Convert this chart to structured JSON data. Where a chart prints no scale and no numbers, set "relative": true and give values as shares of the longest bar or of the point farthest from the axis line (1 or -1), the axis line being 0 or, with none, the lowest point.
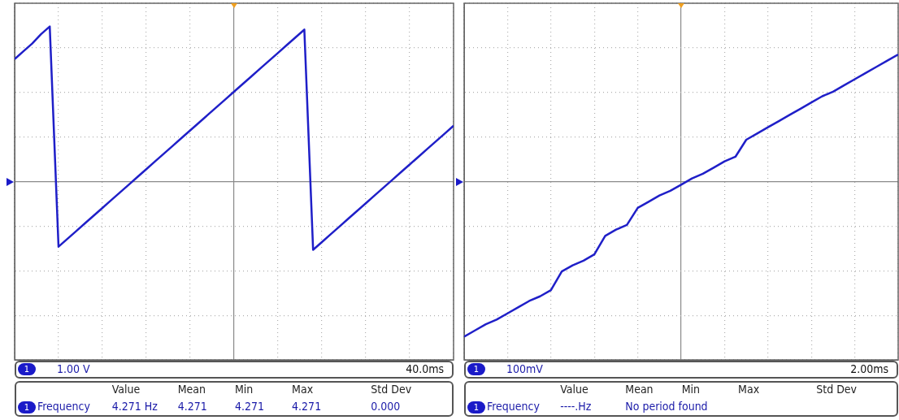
{
  "chart_data": [
    {
      "type": "line",
      "relative": true,
      "grid": true,
      "categories": [
        null,
        null,
        null,
        null,
        null,
        null,
        null,
        null,
        null,
        null,
        null,
        null,
        null,
        null,
        null,
        null,
        null,
        null,
        null,
        null,
        null,
        null,
        null,
        null,
        null,
        null,
        null,
        null,
        null,
        null,
        null,
        null,
        null,
        null,
        null,
        null,
        null,
        null,
        null,
        null,
        null,
        null,
        null,
        null,
        null,
        null,
        null,
        null,
        null,
        null,
        null
      ],
      "series": [
        {
          "color": "#1f1fc8",
          "values": [
            0.79,
            0.84,
            0.89,
            0.95,
            1.0,
            -0.42,
            -0.37,
            -0.32,
            -0.27,
            -0.22,
            -0.17,
            -0.12,
            -0.07,
            -0.02,
            0.03,
            0.08,
            0.13,
            0.18,
            0.23,
            0.28,
            0.33,
            0.38,
            0.43,
            0.48,
            0.53,
            0.58,
            0.63,
            0.68,
            0.73,
            0.78,
            0.83,
            0.88,
            0.93,
            0.98,
            -0.44,
            -0.39,
            -0.34,
            -0.29,
            -0.24,
            -0.19,
            -0.14,
            -0.09,
            -0.04,
            0.01,
            0.06,
            0.11,
            0.16,
            0.21,
            0.26,
            0.31,
            0.36
          ]
        }
      ],
      "annotations": [
        "1.00 V",
        "40.0ms",
        "Value",
        "Mean",
        "Min",
        "Max",
        "Std Dev",
        "Frequency",
        "4.271 Hz",
        "4.271",
        "4.271",
        "4.271",
        "0.000",
        "1",
        "1"
      ]
    },
    {
      "type": "line",
      "relative": true,
      "grid": true,
      "categories": [
        null,
        null,
        null,
        null,
        null,
        null,
        null,
        null,
        null,
        null,
        null,
        null,
        null,
        null,
        null,
        null,
        null,
        null,
        null,
        null,
        null,
        null,
        null,
        null,
        null,
        null,
        null,
        null,
        null,
        null,
        null,
        null,
        null,
        null,
        null,
        null,
        null,
        null,
        null,
        null,
        null
      ],
      "series": [
        {
          "color": "#1f1fc8",
          "values": [
            -1.0,
            -0.96,
            -0.92,
            -0.89,
            -0.85,
            -0.81,
            -0.77,
            -0.74,
            -0.7,
            -0.58,
            -0.54,
            -0.51,
            -0.47,
            -0.35,
            -0.31,
            -0.28,
            -0.17,
            -0.13,
            -0.09,
            -0.06,
            -0.02,
            0.02,
            0.05,
            0.09,
            0.13,
            0.16,
            0.27,
            0.31,
            0.35,
            0.39,
            0.43,
            0.47,
            0.51,
            0.55,
            0.58,
            0.62,
            0.66,
            0.7,
            0.74,
            0.78,
            0.82
          ]
        }
      ],
      "annotations": [
        "100mV",
        "2.00ms",
        "Value",
        "Mean",
        "Min",
        "Max",
        "Std Dev",
        "Frequency",
        "----.Hz",
        "No period found",
        "1",
        "1"
      ]
    }
  ]
}
